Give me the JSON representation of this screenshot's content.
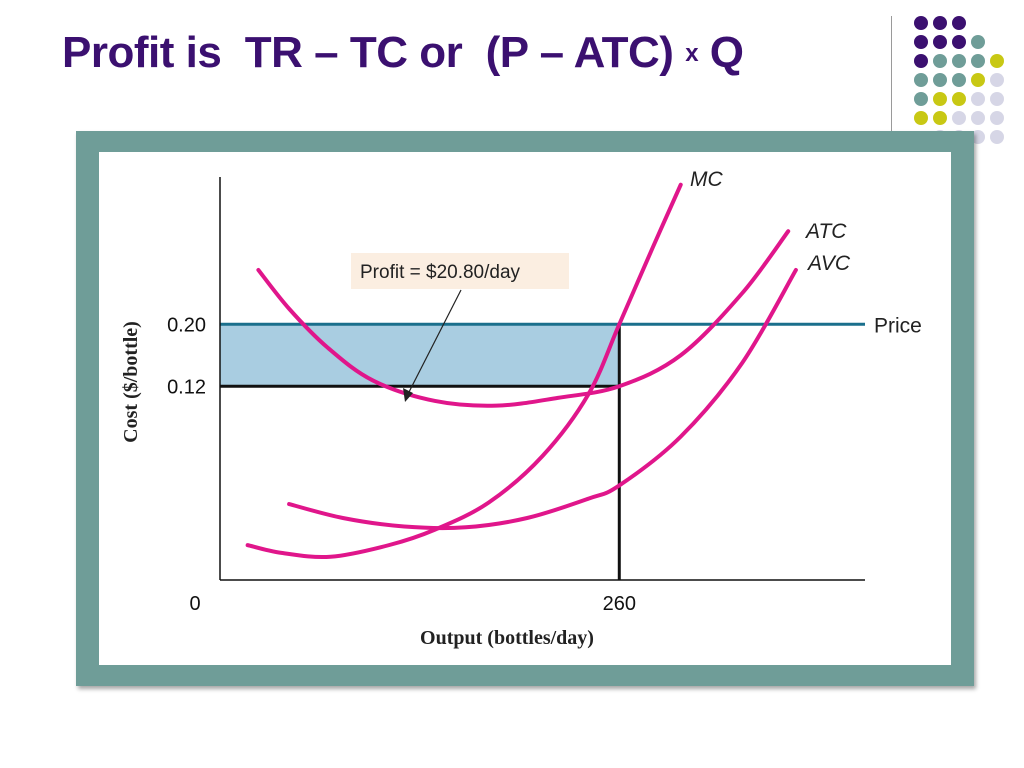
{
  "slide": {
    "title_prefix": "Profit is  TR – TC or  (P – ATC) ",
    "title_times": "x",
    "title_suffix": " Q",
    "colors": {
      "title": "#3b1070",
      "frame": "#6f9d98",
      "dot_purple": "#3b1070",
      "dot_teal": "#6f9d98",
      "dot_yellow": "#c8c814",
      "dot_lavender": "#d6d6e6"
    }
  },
  "chart_data": {
    "type": "line",
    "xlabel": "Output (bottles/day)",
    "ylabel": "Cost ($/bottle)",
    "x_ticks": [
      {
        "value": 0,
        "label": "0"
      },
      {
        "value": 260,
        "label": "260"
      }
    ],
    "y_ticks": [
      {
        "value": 0.12,
        "label": "0.12"
      },
      {
        "value": 0.2,
        "label": "0.20"
      }
    ],
    "xlim": [
      0,
      420
    ],
    "ylim": [
      -0.13,
      0.39
    ],
    "price": {
      "value": 0.2,
      "label": "Price",
      "color": "#1a6f8c"
    },
    "profit_rect": {
      "x": [
        0,
        260
      ],
      "y": [
        0.12,
        0.2
      ],
      "fill": "#a9cde1",
      "label": "Profit = $20.80/day",
      "label_bg": "#fbeee1"
    },
    "series": [
      {
        "name": "MC",
        "color": "#e0168b",
        "x": [
          18,
          40,
          72,
          110,
          140,
          175,
          210,
          240,
          260,
          282,
          300
        ],
        "y": [
          -0.085,
          -0.095,
          -0.1,
          -0.085,
          -0.065,
          -0.03,
          0.03,
          0.11,
          0.2,
          0.3,
          0.38
        ]
      },
      {
        "name": "ATC",
        "color": "#e0168b",
        "x": [
          25,
          45,
          70,
          100,
          140,
          180,
          220,
          260,
          300,
          340,
          370
        ],
        "y": [
          0.27,
          0.22,
          0.17,
          0.127,
          0.101,
          0.095,
          0.105,
          0.12,
          0.16,
          0.24,
          0.32
        ]
      },
      {
        "name": "AVC",
        "color": "#e0168b",
        "x": [
          45,
          80,
          120,
          160,
          200,
          240,
          260,
          300,
          340,
          375
        ],
        "y": [
          -0.032,
          -0.05,
          -0.061,
          -0.062,
          -0.05,
          -0.025,
          -0.008,
          0.055,
          0.15,
          0.27
        ]
      }
    ]
  }
}
